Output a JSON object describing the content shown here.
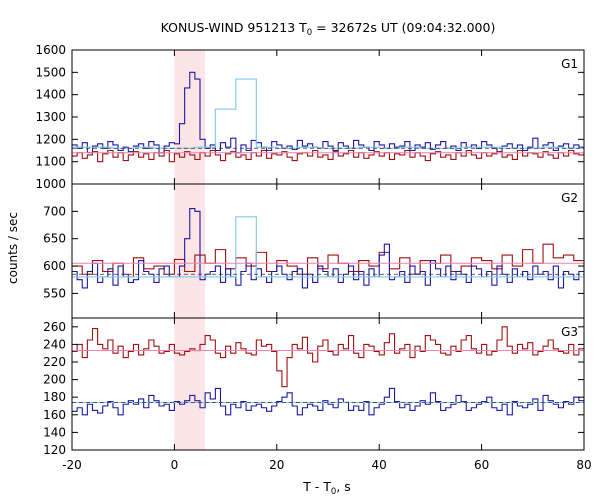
{
  "chart_data": {
    "type": "line",
    "title_main": "KONUS-WIND 951213 T",
    "title_sub": "0",
    "title_rest": " = 32672s UT (09:04:32.000)",
    "xlabel_main": "T - T",
    "xlabel_sub": "0",
    "xlabel_rest": ", s",
    "ylabel": "counts / sec",
    "xlim": [
      -20,
      80
    ],
    "xticks": [
      -20,
      0,
      20,
      40,
      60,
      80
    ],
    "shaded_interval": [
      0,
      6
    ],
    "colors": {
      "blue": "#1a1aa6",
      "red": "#a01010",
      "lightblue": "#7fc8ee",
      "pink": "#ee82b4",
      "shade": "#fde4e6"
    },
    "panels": [
      {
        "name": "G1",
        "ylim": [
          1000,
          1600
        ],
        "yticks": [
          1000,
          1100,
          1200,
          1300,
          1400,
          1500,
          1600
        ],
        "background_level": 1160,
        "series": [
          {
            "color": "blue",
            "bin": 1,
            "x_start": -20,
            "values": [
              1175,
              1160,
              1185,
              1140,
              1170,
              1180,
              1160,
              1190,
              1175,
              1150,
              1165,
              1145,
              1170,
              1180,
              1160,
              1190,
              1175,
              1140,
              1170,
              1185,
              1180,
              1270,
              1430,
              1500,
              1470,
              1200,
              1160,
              1175,
              1150,
              1185,
              1165,
              1205,
              1140,
              1175,
              1150,
              1195,
              1185,
              1165,
              1150,
              1190,
              1175,
              1160,
              1170,
              1155,
              1195,
              1170,
              1180,
              1165,
              1160,
              1190,
              1170,
              1150,
              1185,
              1170,
              1160,
              1195,
              1175,
              1165,
              1150,
              1190,
              1175,
              1160,
              1180,
              1165,
              1170,
              1190,
              1150,
              1175,
              1165,
              1185,
              1155,
              1175,
              1190,
              1160,
              1170,
              1150,
              1185,
              1165,
              1175,
              1160,
              1190,
              1175,
              1160,
              1145,
              1170,
              1180,
              1160,
              1175,
              1150,
              1165,
              1205,
              1160,
              1175,
              1185,
              1150,
              1170,
              1180,
              1160,
              1175,
              1165
            ]
          },
          {
            "color": "lightblue",
            "bin": 4,
            "x_start": -20,
            "values": [
              1165,
              1165,
              1160,
              1165,
              1160,
              1160,
              1165,
              1335,
              1470,
              1165,
              1160,
              1165,
              1160,
              1160,
              1165,
              1160,
              1165,
              1160,
              1160,
              1165,
              1165,
              1160,
              1160,
              1165,
              1160
            ]
          },
          {
            "color": "red",
            "bin": 1,
            "x_start": -20,
            "values": [
              1125,
              1140,
              1115,
              1130,
              1145,
              1100,
              1135,
              1150,
              1120,
              1140,
              1105,
              1130,
              1145,
              1120,
              1135,
              1110,
              1140,
              1125,
              1150,
              1100,
              1135,
              1120,
              1145,
              1130,
              1110,
              1140,
              1125,
              1150,
              1130,
              1105,
              1135,
              1145,
              1120,
              1130,
              1110,
              1140,
              1125,
              1150,
              1115,
              1135,
              1130,
              1145,
              1120,
              1105,
              1135,
              1140,
              1125,
              1150,
              1120,
              1130,
              1110,
              1145,
              1125,
              1135,
              1150,
              1120,
              1140,
              1115,
              1130,
              1145,
              1125,
              1140,
              1110,
              1135,
              1130,
              1150,
              1120,
              1140,
              1125,
              1105,
              1135,
              1145,
              1120,
              1130,
              1110,
              1140,
              1125,
              1150,
              1130,
              1115,
              1140,
              1125,
              1135,
              1145,
              1120,
              1130,
              1110,
              1150,
              1125,
              1140,
              1135,
              1120,
              1145,
              1130,
              1115,
              1140,
              1125,
              1150,
              1135,
              1130
            ]
          },
          {
            "color": "pink",
            "bin": 100,
            "x_start": -20,
            "values": [
              1140
            ]
          }
        ]
      },
      {
        "name": "G2",
        "ylim": [
          505,
          750
        ],
        "yticks": [
          550,
          600,
          650,
          700
        ],
        "background_level": 585,
        "series": [
          {
            "color": "red",
            "bin": 2,
            "x_start": -20,
            "values": [
              600,
              585,
              610,
              590,
              605,
              580,
              615,
              595,
              600,
              585,
              612,
              590,
              620,
              605,
              630,
              595,
              615,
              600,
              625,
              590,
              610,
              600,
              585,
              615,
              595,
              620,
              605,
              590,
              610,
              600,
              625,
              595,
              615,
              585,
              610,
              605,
              620,
              590,
              600,
              615,
              610,
              595,
              620,
              600,
              630,
              605,
              640,
              615,
              620,
              610
            ]
          },
          {
            "color": "blue",
            "bin": 1,
            "x_start": -20,
            "values": [
              590,
              575,
              560,
              590,
              605,
              570,
              580,
              595,
              565,
              600,
              585,
              570,
              575,
              610,
              590,
              585,
              570,
              595,
              600,
              580,
              580,
              600,
              650,
              705,
              700,
              575,
              585,
              590,
              600,
              570,
              595,
              580,
              565,
              590,
              605,
              575,
              595,
              580,
              570,
              590,
              600,
              585,
              575,
              590,
              595,
              560,
              585,
              570,
              600,
              590,
              580,
              595,
              570,
              585,
              600,
              575,
              590,
              565,
              595,
              580,
              620,
              640,
              575,
              580,
              590,
              570,
              600,
              585,
              590,
              565,
              610,
              595,
              580,
              600,
              575,
              590,
              585,
              570,
              600,
              595,
              580,
              590,
              565,
              600,
              585,
              570,
              595,
              580,
              590,
              575,
              600,
              585,
              590,
              575,
              600,
              560,
              590,
              585,
              575,
              590
            ]
          },
          {
            "color": "lightblue",
            "bin": 4,
            "x_start": -20,
            "values": [
              580,
              580,
              580,
              580,
              580,
              580,
              580,
              580,
              690,
              580,
              580,
              580,
              580,
              580,
              580,
              580,
              580,
              580,
              580,
              580,
              580,
              580,
              580,
              580,
              580
            ]
          },
          {
            "color": "pink",
            "bin": 100,
            "x_start": -20,
            "values": [
              605
            ]
          }
        ]
      },
      {
        "name": "G3",
        "ylim": [
          120,
          270
        ],
        "yticks": [
          120,
          140,
          160,
          180,
          200,
          220,
          240,
          260
        ],
        "background_level": 174,
        "series": [
          {
            "color": "red",
            "bin": 1,
            "x_start": -20,
            "values": [
              232,
              240,
              225,
              245,
              258,
              240,
              235,
              245,
              230,
              238,
              225,
              232,
              240,
              228,
              235,
              245,
              238,
              230,
              232,
              240,
              230,
              228,
              232,
              235,
              233,
              240,
              250,
              245,
              230,
              225,
              238,
              230,
              242,
              235,
              230,
              228,
              245,
              238,
              240,
              232,
              210,
              192,
              225,
              240,
              235,
              248,
              230,
              220,
              238,
              245,
              232,
              228,
              240,
              235,
              250,
              230,
              225,
              240,
              238,
              232,
              228,
              242,
              252,
              230,
              235,
              240,
              225,
              238,
              232,
              250,
              245,
              240,
              230,
              228,
              238,
              232,
              245,
              250,
              235,
              230,
              240,
              228,
              232,
              245,
              260,
              238,
              230,
              240,
              235,
              242,
              228,
              232,
              238,
              245,
              235,
              232,
              230,
              240,
              228,
              235
            ]
          },
          {
            "color": "blue",
            "bin": 1,
            "x_start": -20,
            "values": [
              164,
              168,
              160,
              172,
              165,
              162,
              170,
              175,
              168,
              160,
              172,
              176,
              172,
              178,
              168,
              182,
              176,
              170,
              172,
              165,
              175,
              172,
              176,
              182,
              176,
              168,
              185,
              178,
              190,
              170,
              160,
              172,
              168,
              175,
              165,
              170,
              172,
              168,
              164,
              170,
              175,
              180,
              185,
              170,
              160,
              168,
              172,
              170,
              165,
              176,
              172,
              168,
              178,
              174,
              165,
              170,
              165,
              175,
              160,
              168,
              172,
              180,
              190,
              175,
              168,
              172,
              165,
              170,
              176,
              172,
              185,
              175,
              165,
              168,
              172,
              182,
              175,
              165,
              168,
              172,
              175,
              180,
              168,
              165,
              172,
              160,
              175,
              170,
              168,
              172,
              178,
              165,
              182,
              176,
              172,
              168,
              175,
              172,
              180,
              176
            ]
          },
          {
            "color": "lightblue",
            "bin": 100,
            "x_start": -20,
            "values": [
              174
            ]
          },
          {
            "color": "pink",
            "bin": 100,
            "x_start": -20,
            "values": [
              233
            ]
          }
        ]
      }
    ]
  }
}
